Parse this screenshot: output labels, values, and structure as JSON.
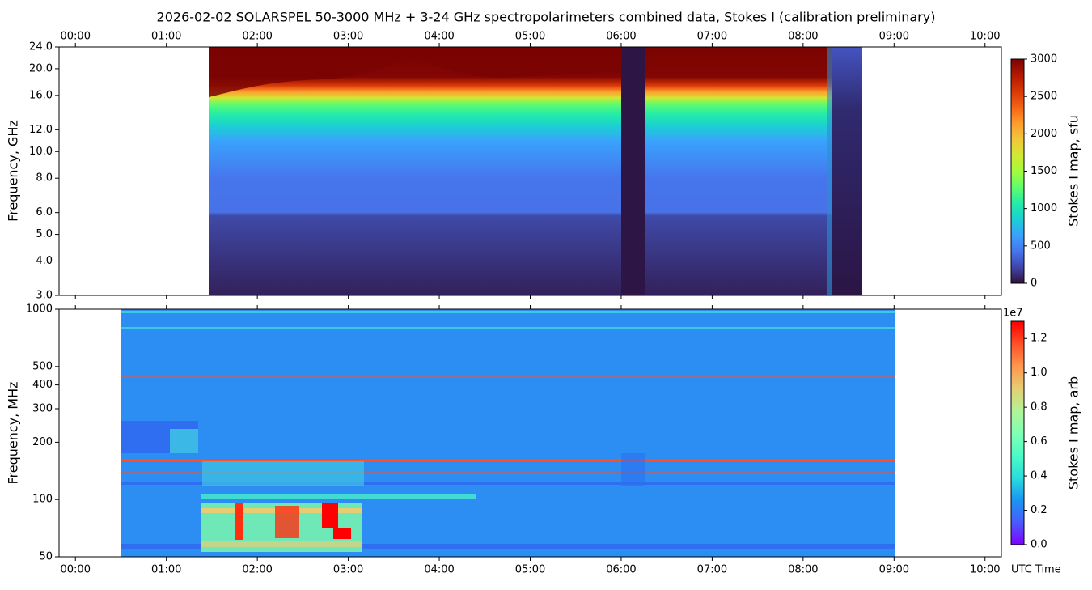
{
  "title": "2026-02-02  SOLARSPEL  50-3000 MHz  +  3-24 GHz  spectropolarimeters combined data,  Stokes I  (calibration preliminary)",
  "xlabel": "UTC Time",
  "chart_data": [
    {
      "type": "heatmap",
      "ylabel": "Frequency, GHz",
      "xlim": [
        -0.18,
        10.18
      ],
      "xticks": [
        {
          "value": 0,
          "label": "00:00"
        },
        {
          "value": 1,
          "label": "01:00"
        },
        {
          "value": 2,
          "label": "02:00"
        },
        {
          "value": 3,
          "label": "03:00"
        },
        {
          "value": 4,
          "label": "04:00"
        },
        {
          "value": 5,
          "label": "05:00"
        },
        {
          "value": 6,
          "label": "06:00"
        },
        {
          "value": 7,
          "label": "07:00"
        },
        {
          "value": 8,
          "label": "08:00"
        },
        {
          "value": 9,
          "label": "09:00"
        },
        {
          "value": 10,
          "label": "10:00"
        }
      ],
      "ylim": [
        3,
        24
      ],
      "yscale": "log",
      "yticks": [
        {
          "value": 3,
          "label": "3.0"
        },
        {
          "value": 4,
          "label": "4.0"
        },
        {
          "value": 5,
          "label": "5.0"
        },
        {
          "value": 6,
          "label": "6.0"
        },
        {
          "value": 8,
          "label": "8.0"
        },
        {
          "value": 10,
          "label": "10.0"
        },
        {
          "value": 12,
          "label": "12.0"
        },
        {
          "value": 16,
          "label": "16.0"
        },
        {
          "value": 20,
          "label": "20.0"
        },
        {
          "value": 24,
          "label": "24.0"
        }
      ],
      "colorbar": {
        "label": "Stokes I map, sfu",
        "clim": [
          0,
          3000
        ],
        "ticks": [
          0,
          500,
          1000,
          1500,
          2000,
          2500,
          3000
        ],
        "colors": [
          "#30123b",
          "#4145ab",
          "#4675ed",
          "#39a2fc",
          "#1bcfd4",
          "#24eca6",
          "#61fc6c",
          "#a4fc3b",
          "#d1e834",
          "#f3c63a",
          "#fe9b2d",
          "#f36315",
          "#d93806",
          "#b11901",
          "#7a0402"
        ]
      }
    },
    {
      "type": "heatmap",
      "ylabel": "Frequency, MHz",
      "xlim": [
        -0.18,
        10.18
      ],
      "xticks": [
        {
          "value": 0,
          "label": "00:00"
        },
        {
          "value": 1,
          "label": "01:00"
        },
        {
          "value": 2,
          "label": "02:00"
        },
        {
          "value": 3,
          "label": "03:00"
        },
        {
          "value": 4,
          "label": "04:00"
        },
        {
          "value": 5,
          "label": "05:00"
        },
        {
          "value": 6,
          "label": "06:00"
        },
        {
          "value": 7,
          "label": "07:00"
        },
        {
          "value": 8,
          "label": "08:00"
        },
        {
          "value": 9,
          "label": "09:00"
        },
        {
          "value": 10,
          "label": "10:00"
        }
      ],
      "ylim": [
        50,
        1000
      ],
      "yscale": "log",
      "yticks": [
        50,
        100,
        200,
        300,
        400,
        500,
        1000
      ],
      "colorbar": {
        "label": "Stokes I map, arb",
        "offset_label": "1e7",
        "clim": [
          0,
          1.3
        ],
        "ticks": [
          {
            "value": 0,
            "label": "0.0"
          },
          {
            "value": 0.2,
            "label": "0.2"
          },
          {
            "value": 0.4,
            "label": "0.4"
          },
          {
            "value": 0.6,
            "label": "0.6"
          },
          {
            "value": 0.8,
            "label": "0.8"
          },
          {
            "value": 1.0,
            "label": "1.0"
          },
          {
            "value": 1.2,
            "label": "1.2"
          }
        ],
        "colors": [
          "#8000ff",
          "#4a5cfc",
          "#1996f3",
          "#2adddd",
          "#4dfbc4",
          "#80ffb4",
          "#b2f396",
          "#e6cd73",
          "#ff964f",
          "#ff5028",
          "#ff0000"
        ]
      }
    }
  ]
}
